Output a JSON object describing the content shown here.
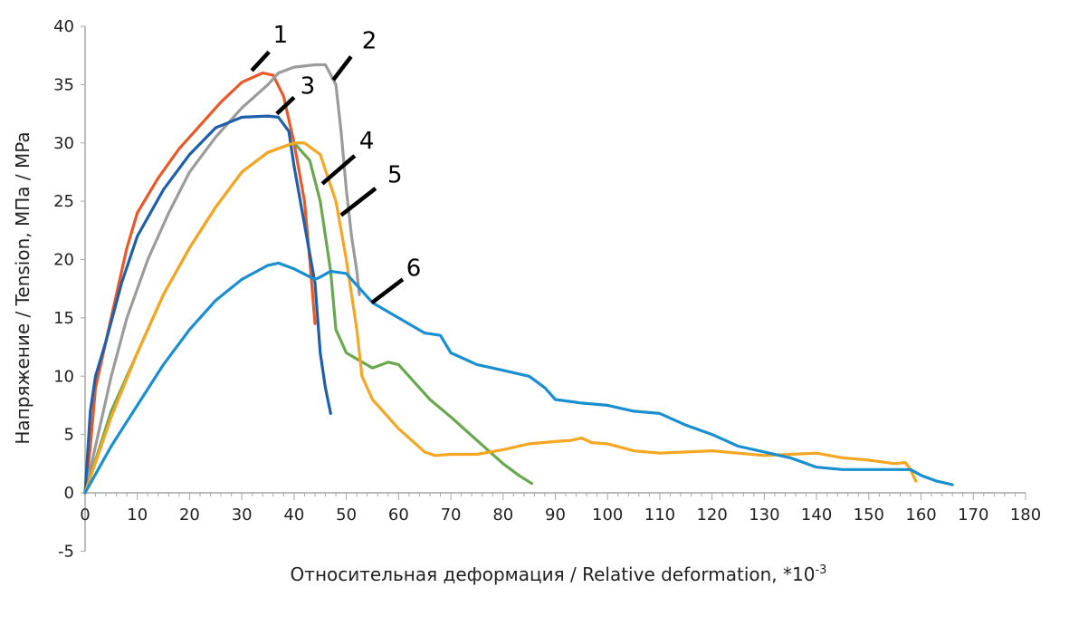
{
  "chart_data": {
    "type": "line",
    "title": "",
    "xlabel": "Относительная деформация / Relative deformation, *10",
    "xlabel_superscript": "-3",
    "ylabel": "Напряжение / Tension, МПа / MPa",
    "xlim": [
      0,
      180
    ],
    "ylim": [
      -5,
      40
    ],
    "x_ticks": [
      0,
      10,
      20,
      30,
      40,
      50,
      60,
      70,
      80,
      90,
      100,
      110,
      120,
      130,
      140,
      150,
      160,
      170,
      180
    ],
    "y_ticks": [
      -5,
      0,
      5,
      10,
      15,
      20,
      25,
      30,
      35,
      40
    ],
    "grid": false,
    "legend": "none",
    "series": [
      {
        "label": "1",
        "color": "#E8592A",
        "x": [
          0,
          1,
          2,
          4,
          6,
          8,
          10,
          14,
          18,
          22,
          26,
          30,
          34,
          36,
          38,
          40,
          42,
          43,
          44
        ],
        "y": [
          0,
          4,
          9,
          13,
          17,
          21,
          24,
          27,
          29.5,
          31.5,
          33.5,
          35.2,
          36,
          35.8,
          34,
          30,
          25,
          20,
          14.5
        ]
      },
      {
        "label": "2",
        "color": "#9B9B9B",
        "x": [
          0,
          2,
          5,
          8,
          12,
          16,
          20,
          25,
          30,
          35,
          37,
          40,
          44,
          46,
          48,
          49,
          50,
          51,
          52,
          52.5
        ],
        "y": [
          0,
          4,
          10,
          15,
          20,
          24,
          27.5,
          30.5,
          33,
          35,
          36,
          36.5,
          36.7,
          36.7,
          35,
          31,
          26,
          22,
          19,
          17
        ]
      },
      {
        "label": "3",
        "color": "#1F5FAA",
        "x": [
          0,
          1,
          2,
          4,
          7,
          10,
          15,
          20,
          25,
          30,
          35,
          37,
          39,
          40,
          42,
          44,
          45,
          46,
          47
        ],
        "y": [
          0,
          7,
          10,
          13,
          18,
          22,
          26,
          29,
          31.3,
          32.2,
          32.3,
          32.2,
          31,
          28,
          23,
          18,
          12,
          9,
          6.8
        ]
      },
      {
        "label": "4",
        "color": "#6AA84F",
        "x": [
          0,
          5,
          10,
          15,
          20,
          25,
          30,
          35,
          40,
          43,
          45,
          47,
          48,
          50,
          55,
          58,
          60,
          63,
          66,
          70,
          75,
          80,
          83,
          85.5
        ],
        "y": [
          0,
          7,
          12,
          17,
          21,
          24.5,
          27.5,
          29.2,
          30,
          28.5,
          25,
          19,
          14,
          12,
          10.7,
          11.2,
          11,
          9.5,
          8,
          6.5,
          4.5,
          2.5,
          1.5,
          0.8
        ]
      },
      {
        "label": "5",
        "color": "#F5A623",
        "x": [
          0,
          5,
          10,
          15,
          20,
          25,
          30,
          35,
          40,
          42,
          45,
          48,
          50,
          52,
          53,
          55,
          60,
          65,
          67,
          70,
          75,
          80,
          85,
          90,
          93,
          95,
          97,
          100,
          105,
          110,
          115,
          120,
          125,
          130,
          135,
          140,
          145,
          150,
          155,
          157,
          158,
          159
        ],
        "y": [
          0,
          6.5,
          12,
          17,
          21,
          24.5,
          27.5,
          29.2,
          30,
          30,
          29,
          25,
          20,
          14,
          10,
          8,
          5.5,
          3.5,
          3.2,
          3.3,
          3.3,
          3.7,
          4.2,
          4.4,
          4.5,
          4.7,
          4.3,
          4.2,
          3.6,
          3.4,
          3.5,
          3.6,
          3.4,
          3.2,
          3.3,
          3.4,
          3,
          2.8,
          2.5,
          2.6,
          2,
          1
        ]
      },
      {
        "label": "6",
        "color": "#1A8FD0",
        "x": [
          0,
          5,
          10,
          15,
          20,
          25,
          30,
          35,
          37,
          40,
          44,
          45,
          47,
          50,
          55,
          60,
          65,
          68,
          70,
          75,
          80,
          85,
          88,
          90,
          95,
          100,
          105,
          110,
          115,
          120,
          125,
          130,
          135,
          140,
          145,
          150,
          155,
          158,
          160,
          163,
          166
        ],
        "y": [
          0,
          4,
          7.5,
          11,
          14,
          16.5,
          18.3,
          19.5,
          19.7,
          19.2,
          18.3,
          18.5,
          19,
          18.8,
          16.3,
          15,
          13.7,
          13.5,
          12,
          11,
          10.5,
          10,
          9,
          8,
          7.7,
          7.5,
          7,
          6.8,
          5.8,
          5,
          4,
          3.5,
          3,
          2.2,
          2,
          2,
          2,
          2,
          1.5,
          1,
          0.7
        ]
      }
    ],
    "annotations": [
      {
        "text": "1",
        "at": [
          37.4,
          39.3
        ],
        "line": [
          [
            31.9,
            36.2
          ],
          [
            35.2,
            37.8
          ]
        ]
      },
      {
        "text": "2",
        "at": [
          54.4,
          38.8
        ],
        "line": [
          [
            47.5,
            35.4
          ],
          [
            50.9,
            37.4
          ]
        ]
      },
      {
        "text": "3",
        "at": [
          42.6,
          34.9
        ],
        "line": [
          [
            36.7,
            32.5
          ],
          [
            40,
            33.9
          ]
        ]
      },
      {
        "text": "4",
        "at": [
          53.9,
          30.2
        ],
        "line": [
          [
            45.4,
            26.5
          ],
          [
            51.6,
            28.9
          ]
        ]
      },
      {
        "text": "5",
        "at": [
          59.3,
          27.3
        ],
        "line": [
          [
            49,
            23.8
          ],
          [
            55.6,
            26.1
          ]
        ]
      },
      {
        "text": "6",
        "at": [
          62.9,
          19.3
        ],
        "line": [
          [
            54.9,
            16.3
          ],
          [
            60.8,
            18.3
          ]
        ]
      }
    ]
  }
}
